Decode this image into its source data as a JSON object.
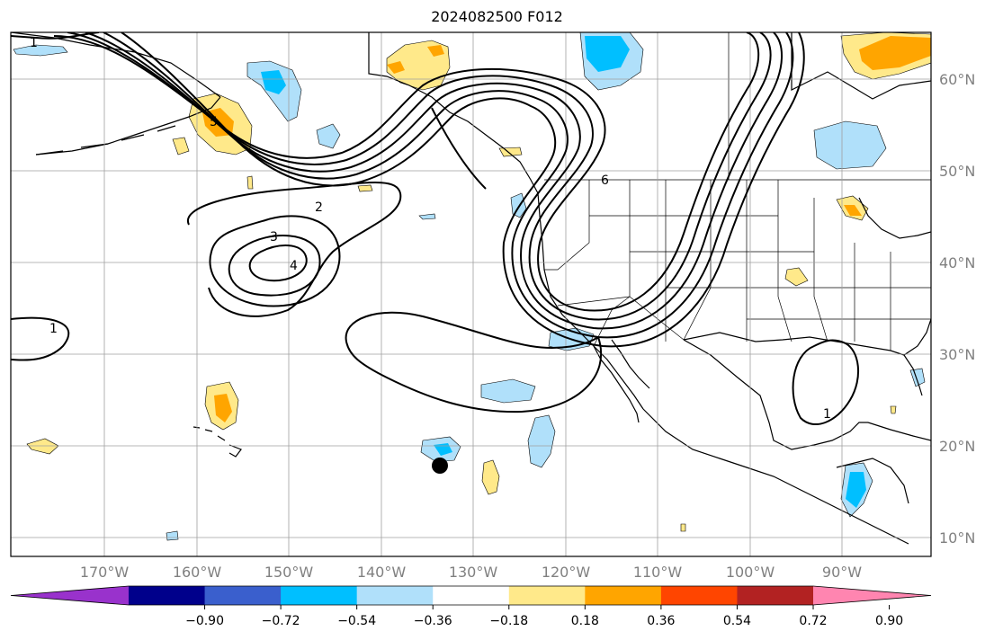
{
  "title": "2024082500 F012",
  "latitude_labels": [
    "60°N",
    "50°N",
    "40°N",
    "30°N",
    "20°N",
    "10°N"
  ],
  "longitude_labels": [
    "170°W",
    "160°W",
    "150°W",
    "140°W",
    "130°W",
    "120°W",
    "110°W",
    "100°W",
    "90°W"
  ],
  "contour_labels": [
    "1",
    "2",
    "3",
    "4",
    "5",
    "6",
    "1",
    "1"
  ],
  "colorbar": {
    "tick_labels": [
      "−0.90",
      "−0.72",
      "−0.54",
      "−0.36",
      "−0.18",
      "0.18",
      "0.36",
      "0.54",
      "0.72",
      "0.90"
    ],
    "colors": [
      "#9932cc",
      "#00008b",
      "#3a5fcd",
      "#00bfff",
      "#b0e0fa",
      "#ffffff",
      "#ffe98a",
      "#ffa500",
      "#ff4500",
      "#b22222",
      "#ff85b0"
    ]
  },
  "legend_colors": {
    "positive_weak": "#ffe98a",
    "positive_mid": "#ffa500",
    "negative_weak": "#b0e0fa",
    "negative_mid": "#00bfff"
  },
  "storm_marker": "black-dot"
}
